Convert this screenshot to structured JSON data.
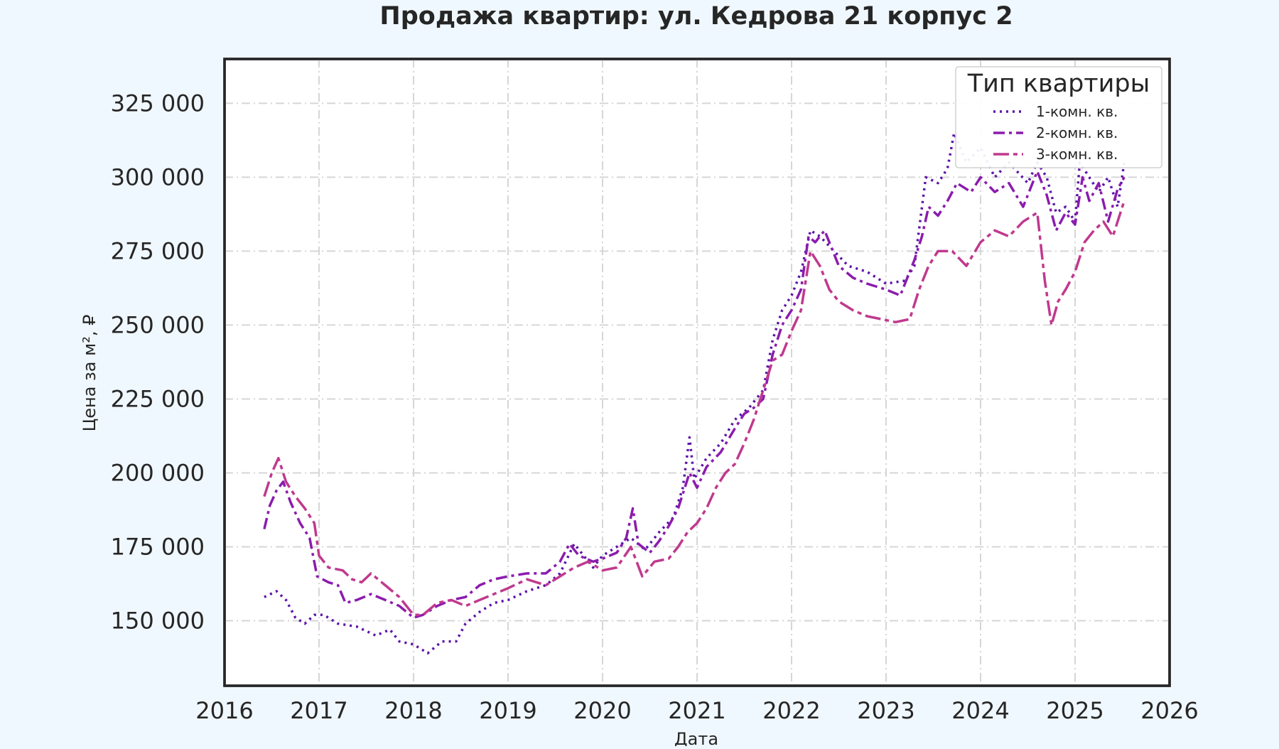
{
  "chart_data": {
    "type": "line",
    "title": "Продажа квартир: ул. Кедрова 21 корпус 2",
    "xlabel": "Дата",
    "ylabel": "Цена за м², ₽",
    "xlim": [
      2016.0,
      2026.0
    ],
    "ylim": [
      128000,
      340000
    ],
    "x_ticks": [
      2016,
      2017,
      2018,
      2019,
      2020,
      2021,
      2022,
      2023,
      2024,
      2025,
      2026
    ],
    "x_tick_labels": [
      "2016",
      "2017",
      "2018",
      "2019",
      "2020",
      "2021",
      "2022",
      "2023",
      "2024",
      "2025",
      "2026"
    ],
    "y_ticks": [
      150000,
      175000,
      200000,
      225000,
      250000,
      275000,
      300000,
      325000
    ],
    "y_tick_labels": [
      "150 000",
      "175 000",
      "200 000",
      "225 000",
      "250 000",
      "275 000",
      "300 000",
      "325 000"
    ],
    "grid": true,
    "legend": {
      "title": "Тип квартиры",
      "placement": "top-right"
    },
    "series": [
      {
        "name": "1-комн. кв.",
        "color": "#5b13a8",
        "dash": "dotted",
        "points": [
          [
            2016.42,
            158000
          ],
          [
            2016.55,
            160000
          ],
          [
            2016.65,
            157000
          ],
          [
            2016.75,
            151000
          ],
          [
            2016.85,
            149000
          ],
          [
            2016.95,
            152000
          ],
          [
            2017.05,
            152000
          ],
          [
            2017.2,
            149000
          ],
          [
            2017.4,
            148000
          ],
          [
            2017.6,
            145000
          ],
          [
            2017.75,
            147000
          ],
          [
            2017.85,
            143000
          ],
          [
            2018.0,
            142000
          ],
          [
            2018.15,
            139000
          ],
          [
            2018.3,
            143000
          ],
          [
            2018.45,
            143000
          ],
          [
            2018.55,
            149000
          ],
          [
            2018.7,
            153000
          ],
          [
            2018.85,
            156000
          ],
          [
            2019.0,
            157000
          ],
          [
            2019.2,
            160000
          ],
          [
            2019.4,
            162000
          ],
          [
            2019.55,
            166000
          ],
          [
            2019.7,
            176000
          ],
          [
            2019.8,
            172000
          ],
          [
            2019.9,
            168000
          ],
          [
            2020.0,
            172000
          ],
          [
            2020.15,
            175000
          ],
          [
            2020.3,
            178000
          ],
          [
            2020.45,
            174000
          ],
          [
            2020.6,
            180000
          ],
          [
            2020.75,
            185000
          ],
          [
            2020.85,
            195000
          ],
          [
            2020.92,
            212000
          ],
          [
            2020.97,
            198000
          ],
          [
            2021.1,
            205000
          ],
          [
            2021.25,
            210000
          ],
          [
            2021.4,
            218000
          ],
          [
            2021.55,
            222000
          ],
          [
            2021.7,
            228000
          ],
          [
            2021.8,
            245000
          ],
          [
            2021.9,
            255000
          ],
          [
            2022.0,
            260000
          ],
          [
            2022.1,
            268000
          ],
          [
            2022.2,
            282000
          ],
          [
            2022.3,
            280000
          ],
          [
            2022.45,
            275000
          ],
          [
            2022.6,
            270000
          ],
          [
            2022.8,
            268000
          ],
          [
            2023.0,
            264000
          ],
          [
            2023.2,
            265000
          ],
          [
            2023.3,
            270000
          ],
          [
            2023.42,
            300000
          ],
          [
            2023.55,
            298000
          ],
          [
            2023.65,
            303000
          ],
          [
            2023.72,
            315000
          ],
          [
            2023.85,
            305000
          ],
          [
            2024.0,
            310000
          ],
          [
            2024.15,
            300000
          ],
          [
            2024.3,
            305000
          ],
          [
            2024.5,
            298000
          ],
          [
            2024.6,
            305000
          ],
          [
            2024.7,
            300000
          ],
          [
            2024.8,
            288000
          ],
          [
            2024.9,
            290000
          ],
          [
            2025.0,
            285000
          ],
          [
            2025.05,
            305000
          ],
          [
            2025.15,
            300000
          ],
          [
            2025.25,
            295000
          ],
          [
            2025.35,
            300000
          ],
          [
            2025.45,
            290000
          ],
          [
            2025.52,
            305000
          ]
        ]
      },
      {
        "name": "2-комн. кв.",
        "color": "#8b1cad",
        "dash": "dashdot",
        "points": [
          [
            2016.42,
            181000
          ],
          [
            2016.48,
            189000
          ],
          [
            2016.55,
            194000
          ],
          [
            2016.62,
            197000
          ],
          [
            2016.7,
            190000
          ],
          [
            2016.8,
            183000
          ],
          [
            2016.9,
            178000
          ],
          [
            2016.98,
            165000
          ],
          [
            2017.1,
            163000
          ],
          [
            2017.2,
            162000
          ],
          [
            2017.28,
            156000
          ],
          [
            2017.4,
            157000
          ],
          [
            2017.55,
            159000
          ],
          [
            2017.7,
            157000
          ],
          [
            2017.85,
            155000
          ],
          [
            2018.0,
            151000
          ],
          [
            2018.1,
            152000
          ],
          [
            2018.25,
            155000
          ],
          [
            2018.4,
            157000
          ],
          [
            2018.55,
            158000
          ],
          [
            2018.7,
            162000
          ],
          [
            2018.85,
            164000
          ],
          [
            2019.0,
            165000
          ],
          [
            2019.2,
            166000
          ],
          [
            2019.4,
            166000
          ],
          [
            2019.55,
            170000
          ],
          [
            2019.65,
            176000
          ],
          [
            2019.75,
            172000
          ],
          [
            2019.9,
            170000
          ],
          [
            2020.0,
            171000
          ],
          [
            2020.15,
            173000
          ],
          [
            2020.25,
            178000
          ],
          [
            2020.32,
            188000
          ],
          [
            2020.38,
            176000
          ],
          [
            2020.5,
            173000
          ],
          [
            2020.6,
            177000
          ],
          [
            2020.7,
            182000
          ],
          [
            2020.8,
            188000
          ],
          [
            2020.92,
            200000
          ],
          [
            2021.0,
            195000
          ],
          [
            2021.1,
            202000
          ],
          [
            2021.25,
            207000
          ],
          [
            2021.4,
            215000
          ],
          [
            2021.5,
            220000
          ],
          [
            2021.6,
            222000
          ],
          [
            2021.7,
            225000
          ],
          [
            2021.8,
            240000
          ],
          [
            2021.9,
            250000
          ],
          [
            2022.0,
            255000
          ],
          [
            2022.1,
            262000
          ],
          [
            2022.18,
            280000
          ],
          [
            2022.25,
            278000
          ],
          [
            2022.35,
            282000
          ],
          [
            2022.5,
            270000
          ],
          [
            2022.65,
            266000
          ],
          [
            2022.8,
            264000
          ],
          [
            2023.0,
            262000
          ],
          [
            2023.15,
            260000
          ],
          [
            2023.3,
            272000
          ],
          [
            2023.38,
            280000
          ],
          [
            2023.45,
            290000
          ],
          [
            2023.55,
            287000
          ],
          [
            2023.65,
            292000
          ],
          [
            2023.75,
            298000
          ],
          [
            2023.9,
            295000
          ],
          [
            2024.0,
            300000
          ],
          [
            2024.15,
            295000
          ],
          [
            2024.3,
            298000
          ],
          [
            2024.45,
            290000
          ],
          [
            2024.6,
            302000
          ],
          [
            2024.7,
            294000
          ],
          [
            2024.8,
            282000
          ],
          [
            2024.9,
            288000
          ],
          [
            2025.0,
            284000
          ],
          [
            2025.08,
            300000
          ],
          [
            2025.15,
            292000
          ],
          [
            2025.25,
            298000
          ],
          [
            2025.35,
            285000
          ],
          [
            2025.45,
            296000
          ],
          [
            2025.52,
            300000
          ]
        ]
      },
      {
        "name": "3-комн. кв.",
        "color": "#c0398e",
        "dash": "dashdotlong",
        "points": [
          [
            2016.42,
            192000
          ],
          [
            2016.5,
            200000
          ],
          [
            2016.57,
            205000
          ],
          [
            2016.65,
            197000
          ],
          [
            2016.75,
            192000
          ],
          [
            2016.85,
            188000
          ],
          [
            2016.95,
            183000
          ],
          [
            2017.0,
            172000
          ],
          [
            2017.1,
            168000
          ],
          [
            2017.25,
            167000
          ],
          [
            2017.35,
            164000
          ],
          [
            2017.45,
            163000
          ],
          [
            2017.55,
            166000
          ],
          [
            2017.7,
            162000
          ],
          [
            2017.85,
            158000
          ],
          [
            2018.0,
            152000
          ],
          [
            2018.1,
            152000
          ],
          [
            2018.25,
            156000
          ],
          [
            2018.4,
            157000
          ],
          [
            2018.55,
            155000
          ],
          [
            2018.7,
            157000
          ],
          [
            2018.85,
            159000
          ],
          [
            2019.0,
            161000
          ],
          [
            2019.2,
            164000
          ],
          [
            2019.4,
            162000
          ],
          [
            2019.55,
            165000
          ],
          [
            2019.7,
            168000
          ],
          [
            2019.85,
            170000
          ],
          [
            2020.0,
            167000
          ],
          [
            2020.15,
            168000
          ],
          [
            2020.3,
            175000
          ],
          [
            2020.42,
            165000
          ],
          [
            2020.55,
            170000
          ],
          [
            2020.7,
            171000
          ],
          [
            2020.8,
            175000
          ],
          [
            2020.9,
            180000
          ],
          [
            2021.0,
            183000
          ],
          [
            2021.1,
            188000
          ],
          [
            2021.2,
            195000
          ],
          [
            2021.3,
            200000
          ],
          [
            2021.4,
            203000
          ],
          [
            2021.5,
            210000
          ],
          [
            2021.6,
            218000
          ],
          [
            2021.7,
            228000
          ],
          [
            2021.8,
            238000
          ],
          [
            2021.9,
            240000
          ],
          [
            2022.0,
            248000
          ],
          [
            2022.1,
            255000
          ],
          [
            2022.2,
            275000
          ],
          [
            2022.3,
            270000
          ],
          [
            2022.4,
            262000
          ],
          [
            2022.5,
            258000
          ],
          [
            2022.65,
            255000
          ],
          [
            2022.8,
            253000
          ],
          [
            2022.95,
            252000
          ],
          [
            2023.1,
            251000
          ],
          [
            2023.25,
            252000
          ],
          [
            2023.35,
            262000
          ],
          [
            2023.45,
            270000
          ],
          [
            2023.55,
            275000
          ],
          [
            2023.7,
            275000
          ],
          [
            2023.85,
            270000
          ],
          [
            2024.0,
            278000
          ],
          [
            2024.15,
            282000
          ],
          [
            2024.3,
            280000
          ],
          [
            2024.45,
            285000
          ],
          [
            2024.6,
            288000
          ],
          [
            2024.68,
            265000
          ],
          [
            2024.75,
            250000
          ],
          [
            2024.82,
            258000
          ],
          [
            2024.9,
            262000
          ],
          [
            2025.0,
            268000
          ],
          [
            2025.1,
            278000
          ],
          [
            2025.2,
            282000
          ],
          [
            2025.3,
            285000
          ],
          [
            2025.4,
            280000
          ],
          [
            2025.5,
            290000
          ],
          [
            2025.52,
            292000
          ]
        ]
      }
    ]
  }
}
